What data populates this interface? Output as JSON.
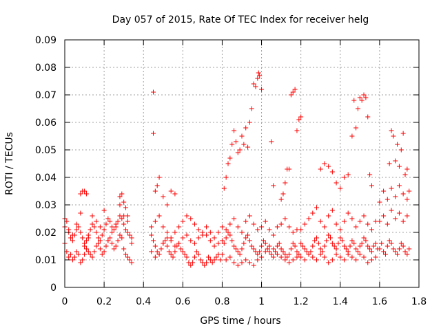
{
  "chart_data": {
    "type": "scatter",
    "title": "Day 057 of 2015, Rate Of TEC Index for receiver helg",
    "xlabel": "GPS time / hours",
    "ylabel": "ROTI / TECUs",
    "xlim": [
      0,
      1.8
    ],
    "ylim": [
      0,
      0.09
    ],
    "x_ticks": [
      "0",
      "0.2",
      "0.4",
      "0.6",
      "0.8",
      "1",
      "1.2",
      "1.4",
      "1.6",
      "1.8"
    ],
    "y_ticks": [
      "0",
      "0.01",
      "0.02",
      "0.03",
      "0.04",
      "0.05",
      "0.06",
      "0.07",
      "0.08",
      "0.09"
    ],
    "grid": true,
    "marker": "+",
    "color": "#ff0000",
    "series": [
      {
        "x": [
          0.0,
          0.01,
          0.02,
          0.03,
          0.04,
          0.05,
          0.06,
          0.07,
          0.08,
          0.09,
          0.1,
          0.11,
          0.12,
          0.13,
          0.14,
          0.15,
          0.16,
          0.17,
          0.18,
          0.19,
          0.2,
          0.21,
          0.22,
          0.23,
          0.24,
          0.25,
          0.26,
          0.27,
          0.28,
          0.29,
          0.3,
          0.31,
          0.32,
          0.33,
          0.34,
          0.0,
          0.01,
          0.02,
          0.03,
          0.04,
          0.05,
          0.06,
          0.07,
          0.08,
          0.09,
          0.1,
          0.11,
          0.12,
          0.13,
          0.14,
          0.15,
          0.16,
          0.17,
          0.18,
          0.19,
          0.2,
          0.21,
          0.22,
          0.23,
          0.24,
          0.25,
          0.26,
          0.27,
          0.28,
          0.29,
          0.3,
          0.31,
          0.32,
          0.33,
          0.34,
          0.0,
          0.02,
          0.04,
          0.06,
          0.08,
          0.1,
          0.12,
          0.14,
          0.16,
          0.18,
          0.2,
          0.22,
          0.24,
          0.26,
          0.28,
          0.3,
          0.32,
          0.34,
          0.08,
          0.09,
          0.1,
          0.11,
          0.28,
          0.29,
          0.3,
          0.31,
          0.32,
          0.44,
          0.45,
          0.46,
          0.47,
          0.48,
          0.49,
          0.5,
          0.51,
          0.52,
          0.53,
          0.54,
          0.55,
          0.56,
          0.57,
          0.58,
          0.59,
          0.6,
          0.61,
          0.62,
          0.63,
          0.64,
          0.65,
          0.66,
          0.67,
          0.68,
          0.69,
          0.7,
          0.71,
          0.72,
          0.73,
          0.74,
          0.75,
          0.76,
          0.77,
          0.78,
          0.79,
          0.44,
          0.46,
          0.48,
          0.5,
          0.52,
          0.54,
          0.56,
          0.58,
          0.6,
          0.62,
          0.64,
          0.66,
          0.68,
          0.7,
          0.72,
          0.74,
          0.76,
          0.78,
          0.44,
          0.46,
          0.48,
          0.5,
          0.52,
          0.54,
          0.56,
          0.58,
          0.6,
          0.62,
          0.64,
          0.66,
          0.68,
          0.7,
          0.72,
          0.74,
          0.76,
          0.78,
          0.45,
          0.45,
          0.46,
          0.47,
          0.48,
          0.5,
          0.52,
          0.54,
          0.56,
          0.8,
          0.81,
          0.82,
          0.83,
          0.84,
          0.85,
          0.86,
          0.87,
          0.88,
          0.89,
          0.9,
          0.91,
          0.92,
          0.93,
          0.94,
          0.95,
          0.96,
          0.97,
          0.98,
          0.99,
          1.0,
          1.01,
          1.02,
          1.03,
          1.04,
          1.05,
          1.06,
          1.07,
          1.08,
          1.09,
          1.1,
          1.11,
          1.12,
          1.13,
          1.14,
          1.15,
          1.16,
          1.17,
          1.18,
          1.19,
          0.8,
          0.82,
          0.84,
          0.86,
          0.88,
          0.9,
          0.92,
          0.94,
          0.96,
          0.98,
          1.0,
          1.02,
          1.04,
          1.06,
          1.08,
          1.1,
          1.12,
          1.14,
          1.16,
          1.18,
          0.8,
          0.82,
          0.84,
          0.86,
          0.88,
          0.9,
          0.92,
          0.94,
          0.96,
          0.98,
          1.0,
          1.02,
          1.04,
          1.06,
          1.08,
          1.1,
          1.12,
          1.14,
          1.16,
          1.18,
          0.81,
          0.82,
          0.83,
          0.84,
          0.85,
          0.86,
          0.87,
          0.88,
          0.89,
          0.9,
          0.91,
          0.92,
          0.93,
          0.94,
          0.95,
          0.96,
          0.97,
          0.98,
          0.985,
          0.99,
          1.0,
          1.05,
          1.06,
          1.1,
          1.11,
          1.12,
          1.13,
          1.14,
          1.15,
          1.16,
          1.17,
          1.18,
          1.19,
          1.2,
          1.2,
          1.21,
          1.22,
          1.23,
          1.24,
          1.25,
          1.26,
          1.27,
          1.28,
          1.29,
          1.3,
          1.31,
          1.32,
          1.33,
          1.34,
          1.35,
          1.36,
          1.37,
          1.38,
          1.39,
          1.4,
          1.41,
          1.42,
          1.43,
          1.44,
          1.45,
          1.46,
          1.47,
          1.48,
          1.49,
          1.5,
          1.51,
          1.52,
          1.53,
          1.54,
          1.55,
          1.56,
          1.57,
          1.58,
          1.59,
          1.2,
          1.22,
          1.24,
          1.26,
          1.28,
          1.3,
          1.32,
          1.34,
          1.36,
          1.38,
          1.4,
          1.42,
          1.44,
          1.46,
          1.48,
          1.5,
          1.52,
          1.54,
          1.56,
          1.58,
          1.2,
          1.22,
          1.24,
          1.26,
          1.28,
          1.3,
          1.32,
          1.34,
          1.36,
          1.38,
          1.4,
          1.42,
          1.44,
          1.46,
          1.48,
          1.5,
          1.52,
          1.54,
          1.56,
          1.58,
          1.3,
          1.32,
          1.34,
          1.36,
          1.38,
          1.4,
          1.42,
          1.44,
          1.46,
          1.47,
          1.48,
          1.49,
          1.5,
          1.51,
          1.52,
          1.53,
          1.54,
          1.55,
          1.56,
          1.6,
          1.61,
          1.62,
          1.63,
          1.64,
          1.65,
          1.66,
          1.67,
          1.68,
          1.69,
          1.7,
          1.71,
          1.72,
          1.73,
          1.74,
          1.75,
          1.6,
          1.62,
          1.64,
          1.66,
          1.68,
          1.7,
          1.72,
          1.74,
          1.6,
          1.62,
          1.64,
          1.66,
          1.68,
          1.7,
          1.72,
          1.74,
          1.65,
          1.66,
          1.67,
          1.68,
          1.69,
          1.7,
          1.71,
          1.72,
          1.73,
          1.74,
          1.75
        ],
        "y": [
          0.016,
          0.013,
          0.011,
          0.012,
          0.01,
          0.011,
          0.013,
          0.012,
          0.009,
          0.01,
          0.012,
          0.014,
          0.013,
          0.012,
          0.011,
          0.013,
          0.015,
          0.016,
          0.014,
          0.012,
          0.013,
          0.015,
          0.017,
          0.018,
          0.016,
          0.014,
          0.015,
          0.017,
          0.019,
          0.018,
          0.014,
          0.012,
          0.011,
          0.01,
          0.009,
          0.022,
          0.024,
          0.02,
          0.018,
          0.017,
          0.019,
          0.021,
          0.022,
          0.02,
          0.018,
          0.016,
          0.017,
          0.019,
          0.021,
          0.023,
          0.022,
          0.02,
          0.018,
          0.017,
          0.019,
          0.021,
          0.023,
          0.025,
          0.024,
          0.022,
          0.021,
          0.023,
          0.024,
          0.026,
          0.025,
          0.023,
          0.021,
          0.02,
          0.019,
          0.018,
          0.025,
          0.021,
          0.019,
          0.023,
          0.027,
          0.015,
          0.018,
          0.026,
          0.024,
          0.022,
          0.028,
          0.017,
          0.02,
          0.022,
          0.03,
          0.026,
          0.024,
          0.016,
          0.034,
          0.035,
          0.035,
          0.034,
          0.033,
          0.034,
          0.031,
          0.029,
          0.026,
          0.019,
          0.017,
          0.015,
          0.013,
          0.012,
          0.014,
          0.016,
          0.017,
          0.015,
          0.013,
          0.012,
          0.011,
          0.013,
          0.015,
          0.016,
          0.014,
          0.013,
          0.012,
          0.011,
          0.009,
          0.008,
          0.009,
          0.011,
          0.013,
          0.012,
          0.01,
          0.009,
          0.008,
          0.009,
          0.011,
          0.01,
          0.009,
          0.01,
          0.011,
          0.012,
          0.01,
          0.022,
          0.024,
          0.026,
          0.022,
          0.02,
          0.018,
          0.02,
          0.022,
          0.024,
          0.026,
          0.025,
          0.023,
          0.021,
          0.019,
          0.022,
          0.02,
          0.018,
          0.02,
          0.013,
          0.011,
          0.012,
          0.016,
          0.018,
          0.017,
          0.015,
          0.016,
          0.018,
          0.019,
          0.017,
          0.016,
          0.018,
          0.02,
          0.019,
          0.017,
          0.015,
          0.016,
          0.071,
          0.056,
          0.035,
          0.037,
          0.04,
          0.033,
          0.03,
          0.035,
          0.034,
          0.017,
          0.016,
          0.018,
          0.02,
          0.019,
          0.017,
          0.015,
          0.014,
          0.013,
          0.012,
          0.014,
          0.016,
          0.018,
          0.019,
          0.017,
          0.015,
          0.014,
          0.013,
          0.012,
          0.013,
          0.015,
          0.017,
          0.016,
          0.014,
          0.013,
          0.012,
          0.011,
          0.013,
          0.015,
          0.016,
          0.014,
          0.013,
          0.012,
          0.011,
          0.012,
          0.014,
          0.016,
          0.015,
          0.013,
          0.012,
          0.012,
          0.01,
          0.011,
          0.009,
          0.008,
          0.009,
          0.01,
          0.009,
          0.008,
          0.01,
          0.011,
          0.013,
          0.015,
          0.014,
          0.012,
          0.011,
          0.01,
          0.009,
          0.01,
          0.011,
          0.022,
          0.021,
          0.023,
          0.025,
          0.022,
          0.02,
          0.024,
          0.026,
          0.023,
          0.021,
          0.022,
          0.024,
          0.021,
          0.019,
          0.022,
          0.023,
          0.025,
          0.022,
          0.02,
          0.021,
          0.036,
          0.04,
          0.045,
          0.047,
          0.052,
          0.057,
          0.053,
          0.049,
          0.05,
          0.055,
          0.052,
          0.058,
          0.051,
          0.06,
          0.065,
          0.074,
          0.073,
          0.076,
          0.078,
          0.077,
          0.072,
          0.053,
          0.037,
          0.032,
          0.034,
          0.038,
          0.043,
          0.043,
          0.07,
          0.071,
          0.072,
          0.057,
          0.061,
          0.062,
          0.016,
          0.015,
          0.014,
          0.013,
          0.012,
          0.013,
          0.015,
          0.017,
          0.018,
          0.016,
          0.014,
          0.013,
          0.015,
          0.017,
          0.019,
          0.018,
          0.016,
          0.015,
          0.014,
          0.016,
          0.018,
          0.017,
          0.015,
          0.014,
          0.013,
          0.015,
          0.017,
          0.016,
          0.014,
          0.013,
          0.015,
          0.016,
          0.018,
          0.017,
          0.015,
          0.014,
          0.013,
          0.015,
          0.016,
          0.014,
          0.011,
          0.01,
          0.012,
          0.011,
          0.01,
          0.012,
          0.011,
          0.009,
          0.01,
          0.012,
          0.011,
          0.01,
          0.012,
          0.011,
          0.01,
          0.012,
          0.011,
          0.009,
          0.01,
          0.011,
          0.021,
          0.023,
          0.025,
          0.027,
          0.029,
          0.024,
          0.022,
          0.026,
          0.028,
          0.023,
          0.021,
          0.024,
          0.027,
          0.025,
          0.022,
          0.024,
          0.026,
          0.023,
          0.021,
          0.024,
          0.043,
          0.045,
          0.044,
          0.042,
          0.038,
          0.036,
          0.04,
          0.041,
          0.055,
          0.068,
          0.058,
          0.065,
          0.069,
          0.068,
          0.07,
          0.069,
          0.062,
          0.041,
          0.037,
          0.014,
          0.016,
          0.013,
          0.012,
          0.015,
          0.017,
          0.016,
          0.014,
          0.013,
          0.012,
          0.014,
          0.016,
          0.015,
          0.013,
          0.012,
          0.014,
          0.024,
          0.026,
          0.023,
          0.028,
          0.025,
          0.027,
          0.024,
          0.026,
          0.031,
          0.035,
          0.032,
          0.036,
          0.033,
          0.037,
          0.034,
          0.032,
          0.045,
          0.057,
          0.055,
          0.046,
          0.052,
          0.044,
          0.05,
          0.056,
          0.041,
          0.043,
          0.035
        ]
      }
    ]
  }
}
